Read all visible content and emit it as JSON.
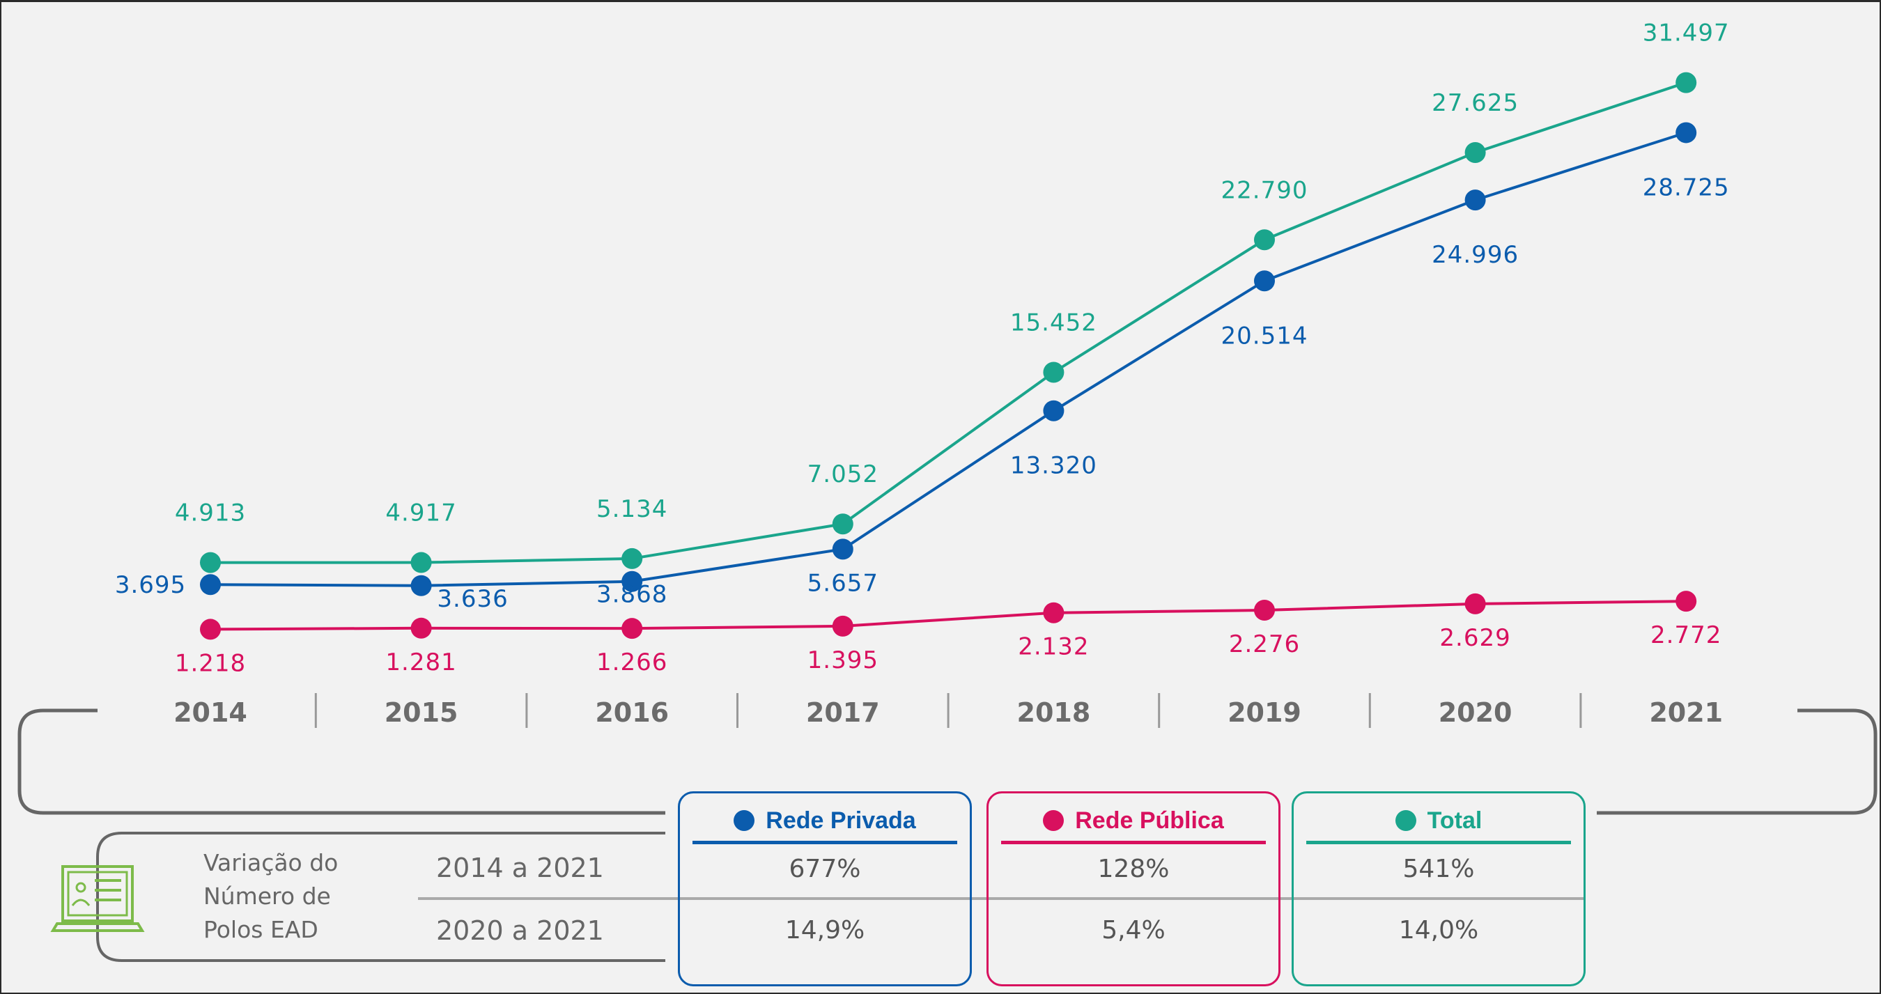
{
  "chart_data": {
    "type": "line",
    "title": "",
    "xlabel": "",
    "ylabel": "",
    "categories": [
      "2014",
      "2015",
      "2016",
      "2017",
      "2018",
      "2019",
      "2020",
      "2021"
    ],
    "series": [
      {
        "name": "Total",
        "color": "#1aa58c",
        "values": [
          4913,
          4917,
          5134,
          7052,
          15452,
          22790,
          27625,
          31497
        ],
        "labels": [
          "4.913",
          "4.917",
          "5.134",
          "7.052",
          "15.452",
          "22.790",
          "27.625",
          "31.497"
        ]
      },
      {
        "name": "Rede Privada",
        "color": "#0b5cad",
        "values": [
          3695,
          3636,
          3868,
          5657,
          13320,
          20514,
          24996,
          28725
        ],
        "labels": [
          "3.695",
          "3.636",
          "3.868",
          "5.657",
          "13.320",
          "20.514",
          "24.996",
          "28.725"
        ]
      },
      {
        "name": "Rede Pública",
        "color": "#d8105e",
        "values": [
          1218,
          1281,
          1266,
          1395,
          2132,
          2276,
          2629,
          2772
        ],
        "labels": [
          "1.218",
          "1.281",
          "1.266",
          "1.395",
          "2.132",
          "2.276",
          "2.629",
          "2.772"
        ]
      }
    ],
    "ylim": [
      0,
      32000
    ],
    "grid": false,
    "legend": "bottom"
  },
  "table": {
    "row_title_lines": [
      "Variação do",
      "Número de",
      "Polos EAD"
    ],
    "periods": [
      "2014 a 2021",
      "2020 a 2021"
    ],
    "columns": [
      {
        "name": "Rede Privada",
        "color": "#0b5cad",
        "values": [
          "677%",
          "14,9%"
        ]
      },
      {
        "name": "Rede Pública",
        "color": "#d8105e",
        "values": [
          "128%",
          "5,4%"
        ]
      },
      {
        "name": "Total",
        "color": "#1aa58c",
        "values": [
          "541%",
          "14,0%"
        ]
      }
    ]
  },
  "icons": {
    "row_icon": "laptop-profile-icon",
    "icon_color": "#7dbb4a"
  }
}
